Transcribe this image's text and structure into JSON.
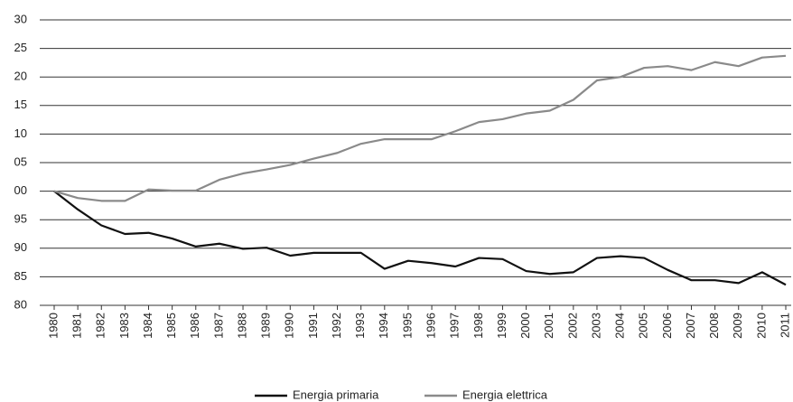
{
  "chart_data": {
    "type": "line",
    "categories": [
      "1980",
      "1981",
      "1982",
      "1983",
      "1984",
      "1985",
      "1986",
      "1987",
      "1988",
      "1989",
      "1990",
      "1991",
      "1992",
      "1993",
      "1994",
      "1995",
      "1996",
      "1997",
      "1998",
      "1999",
      "2000",
      "2001",
      "2002",
      "2003",
      "2004",
      "2005",
      "2006",
      "2007",
      "2008",
      "2009",
      "2010",
      "2011"
    ],
    "series": [
      {
        "name": "Energia primaria",
        "color": "#111111",
        "values": [
          100,
          96.8,
          94.0,
          92.5,
          92.7,
          91.7,
          90.3,
          90.8,
          89.9,
          90.1,
          88.7,
          89.2,
          89.2,
          89.2,
          86.4,
          87.8,
          87.4,
          86.8,
          88.3,
          88.1,
          86.0,
          85.5,
          85.8,
          88.3,
          88.6,
          88.3,
          86.2,
          84.4,
          84.4,
          83.9,
          85.8,
          83.6
        ]
      },
      {
        "name": "Energia elettrica",
        "color": "#8a8a8a",
        "values": [
          100,
          98.8,
          98.3,
          98.3,
          100.3,
          100.1,
          100.1,
          102.0,
          103.1,
          103.8,
          104.6,
          105.7,
          106.7,
          108.3,
          109.1,
          109.1,
          109.1,
          110.5,
          112.1,
          112.6,
          113.6,
          114.1,
          116.0,
          119.4,
          120.0,
          121.6,
          121.9,
          121.2,
          122.6,
          121.9,
          123.4,
          123.7
        ]
      }
    ],
    "ylim": [
      80,
      130
    ],
    "yticks": [
      80,
      85,
      90,
      95,
      {
        "value": 100,
        "label": "00"
      },
      {
        "value": 105,
        "label": "05"
      },
      {
        "value": 110,
        "label": "10"
      },
      {
        "value": 115,
        "label": "15"
      },
      {
        "value": 120,
        "label": "20"
      },
      {
        "value": 125,
        "label": "25"
      },
      {
        "value": 130,
        "label": "30"
      }
    ],
    "grid": true,
    "legend": "bottom"
  }
}
